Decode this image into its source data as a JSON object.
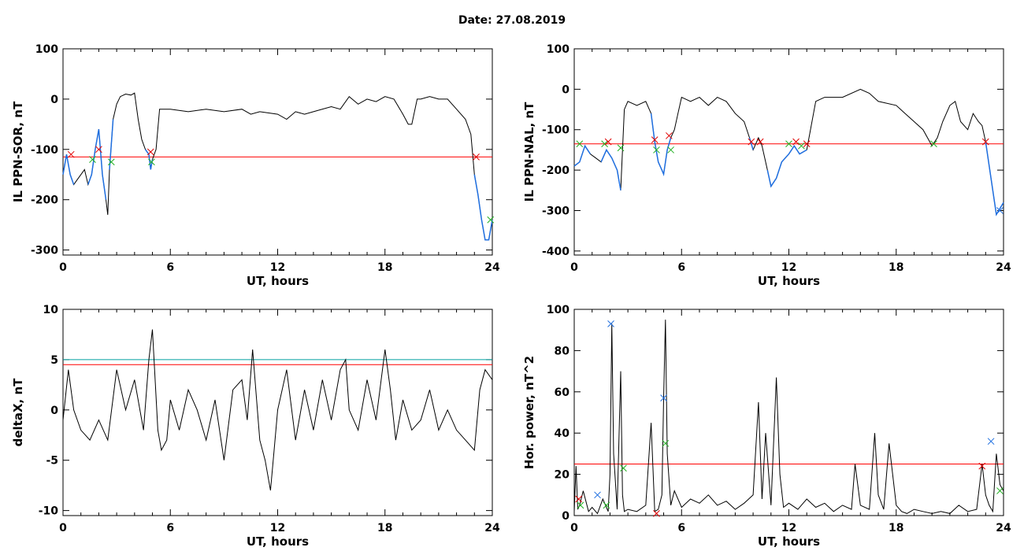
{
  "page": {
    "title": "Date:  27.08.2019"
  },
  "colors": {
    "trace": "#000000",
    "highlight": "#1f6fe0",
    "threshold": "#ff0000",
    "threshold2": "#00a0a0",
    "marker_red": "#e00000",
    "marker_green": "#20b020",
    "marker_blue": "#1f6fe0"
  },
  "chart_data": [
    {
      "type": "line",
      "id": "sor",
      "xlabel": "UT, hours",
      "ylabel": "IL PPN-SOR, nT",
      "xlim": [
        0,
        24
      ],
      "ylim": [
        -310,
        100
      ],
      "xticks": [
        "0",
        "6",
        "12",
        "18",
        "24"
      ],
      "yticks": [
        "-300",
        "-200",
        "-100",
        "0",
        "100"
      ],
      "threshold": -115,
      "series": [
        {
          "x": [
            0,
            0.2,
            0.4,
            0.6,
            0.8,
            1.0,
            1.2,
            1.4,
            1.6,
            1.8,
            2.0,
            2.2,
            2.4,
            2.5,
            2.6,
            2.8,
            3.0,
            3.2,
            3.5,
            3.8,
            4.0,
            4.2,
            4.4,
            4.6,
            4.8,
            4.9,
            5.0,
            5.2,
            5.4,
            6,
            7,
            8,
            9,
            10,
            10.5,
            11,
            12,
            12.5,
            13,
            13.5,
            14,
            15,
            15.5,
            16,
            16.5,
            17,
            17.5,
            18,
            18.5,
            19,
            19.3,
            19.5,
            19.8,
            20,
            20.5,
            21,
            21.5,
            22,
            22.5,
            22.8,
            23.0,
            23.2,
            23.4,
            23.6,
            23.8,
            24
          ],
          "y": [
            -150,
            -110,
            -150,
            -170,
            -160,
            -150,
            -140,
            -170,
            -150,
            -100,
            -60,
            -150,
            -200,
            -230,
            -140,
            -40,
            -10,
            5,
            10,
            8,
            12,
            -40,
            -80,
            -100,
            -110,
            -140,
            -120,
            -100,
            -20,
            -20,
            -25,
            -20,
            -25,
            -20,
            -30,
            -25,
            -30,
            -40,
            -25,
            -30,
            -25,
            -15,
            -20,
            5,
            -10,
            0,
            -5,
            5,
            0,
            -30,
            -50,
            -50,
            0,
            0,
            5,
            0,
            0,
            -20,
            -40,
            -70,
            -150,
            -190,
            -240,
            -280,
            -280,
            -240
          ],
          "highlight": [
            [
              0,
              0.6
            ],
            [
              1.4,
              2.4
            ],
            [
              2.6,
              2.8
            ],
            [
              4.6,
              5.0
            ],
            [
              23.0,
              24
            ]
          ]
        }
      ],
      "markers": [
        {
          "x": 0.45,
          "y": -110,
          "color": "marker_red"
        },
        {
          "x": 1.65,
          "y": -120,
          "color": "marker_green"
        },
        {
          "x": 2.0,
          "y": -100,
          "color": "marker_red"
        },
        {
          "x": 2.7,
          "y": -125,
          "color": "marker_green"
        },
        {
          "x": 4.9,
          "y": -105,
          "color": "marker_red"
        },
        {
          "x": 4.95,
          "y": -125,
          "color": "marker_green"
        },
        {
          "x": 23.1,
          "y": -115,
          "color": "marker_red"
        },
        {
          "x": 23.9,
          "y": -240,
          "color": "marker_green"
        }
      ]
    },
    {
      "type": "line",
      "id": "nal",
      "xlabel": "UT, hours",
      "ylabel": "IL PPN-NAL, nT",
      "xlim": [
        0,
        24
      ],
      "ylim": [
        -410,
        100
      ],
      "xticks": [
        "0",
        "6",
        "12",
        "18",
        "24"
      ],
      "yticks": [
        "-400",
        "-300",
        "-200",
        "-100",
        "0",
        "100"
      ],
      "threshold": -135,
      "series": [
        {
          "x": [
            0,
            0.3,
            0.6,
            0.9,
            1.2,
            1.5,
            1.8,
            2.1,
            2.4,
            2.6,
            2.8,
            3.0,
            3.5,
            4.0,
            4.3,
            4.5,
            4.7,
            4.9,
            5.0,
            5.2,
            5.4,
            5.6,
            5.8,
            6.0,
            6.5,
            7,
            7.5,
            8,
            8.5,
            9,
            9.5,
            9.8,
            10.0,
            10.3,
            10.5,
            10.8,
            11,
            11.3,
            11.6,
            12,
            12.3,
            12.6,
            13,
            13.5,
            14,
            15,
            16,
            16.5,
            17,
            18,
            18.5,
            19,
            19.5,
            20,
            20.3,
            20.6,
            21,
            21.3,
            21.6,
            22,
            22.3,
            22.6,
            22.8,
            23.0,
            23.3,
            23.6,
            24
          ],
          "y": [
            -190,
            -180,
            -140,
            -160,
            -170,
            -180,
            -150,
            -170,
            -200,
            -250,
            -50,
            -30,
            -40,
            -30,
            -60,
            -130,
            -180,
            -200,
            -210,
            -150,
            -120,
            -100,
            -60,
            -20,
            -30,
            -20,
            -40,
            -20,
            -30,
            -60,
            -80,
            -120,
            -150,
            -120,
            -140,
            -200,
            -240,
            -220,
            -180,
            -160,
            -140,
            -160,
            -150,
            -30,
            -20,
            -20,
            0,
            -10,
            -30,
            -40,
            -60,
            -80,
            -100,
            -140,
            -120,
            -80,
            -40,
            -30,
            -80,
            -100,
            -60,
            -80,
            -90,
            -130,
            -220,
            -310,
            -280
          ],
          "highlight": [
            [
              0,
              1.0
            ],
            [
              1.5,
              2.6
            ],
            [
              4.3,
              5.4
            ],
            [
              9.8,
              10.0
            ],
            [
              10.6,
              13.0
            ],
            [
              19.9,
              20.2
            ],
            [
              22.9,
              24
            ]
          ]
        }
      ],
      "markers": [
        {
          "x": 0.3,
          "y": -135,
          "color": "marker_green"
        },
        {
          "x": 1.7,
          "y": -135,
          "color": "marker_green"
        },
        {
          "x": 1.9,
          "y": -130,
          "color": "marker_red"
        },
        {
          "x": 2.6,
          "y": -145,
          "color": "marker_green"
        },
        {
          "x": 4.5,
          "y": -125,
          "color": "marker_red"
        },
        {
          "x": 4.6,
          "y": -150,
          "color": "marker_green"
        },
        {
          "x": 5.3,
          "y": -115,
          "color": "marker_red"
        },
        {
          "x": 5.4,
          "y": -150,
          "color": "marker_green"
        },
        {
          "x": 9.9,
          "y": -130,
          "color": "marker_red"
        },
        {
          "x": 10.4,
          "y": -130,
          "color": "marker_red"
        },
        {
          "x": 12.0,
          "y": -135,
          "color": "marker_green"
        },
        {
          "x": 12.4,
          "y": -130,
          "color": "marker_red"
        },
        {
          "x": 12.7,
          "y": -140,
          "color": "marker_green"
        },
        {
          "x": 13.0,
          "y": -135,
          "color": "marker_red"
        },
        {
          "x": 20.1,
          "y": -135,
          "color": "marker_green"
        },
        {
          "x": 23.0,
          "y": -130,
          "color": "marker_red"
        },
        {
          "x": 23.8,
          "y": -300,
          "color": "marker_blue"
        }
      ]
    },
    {
      "type": "line",
      "id": "deltax",
      "xlabel": "UT, hours",
      "ylabel": "deltaX, nT",
      "xlim": [
        0,
        24
      ],
      "ylim": [
        -10.5,
        10
      ],
      "xticks": [
        "0",
        "6",
        "12",
        "18",
        "24"
      ],
      "yticks": [
        "-10",
        "-5",
        "0",
        "5",
        "10"
      ],
      "threshold": 4.5,
      "threshold2": 5.0,
      "series": [
        {
          "x": [
            0,
            0.3,
            0.6,
            1.0,
            1.5,
            2.0,
            2.5,
            3.0,
            3.5,
            4.0,
            4.5,
            4.8,
            5.0,
            5.3,
            5.5,
            5.8,
            6.0,
            6.5,
            7.0,
            7.5,
            8.0,
            8.5,
            9.0,
            9.5,
            10.0,
            10.3,
            10.6,
            11.0,
            11.3,
            11.6,
            11.8,
            12.0,
            12.5,
            13.0,
            13.5,
            14.0,
            14.5,
            15.0,
            15.5,
            15.8,
            16.0,
            16.5,
            17.0,
            17.5,
            18.0,
            18.3,
            18.6,
            19.0,
            19.5,
            20.0,
            20.5,
            21.0,
            21.5,
            22.0,
            22.5,
            23.0,
            23.3,
            23.6,
            24
          ],
          "y": [
            -1,
            4,
            0,
            -2,
            -3,
            -1,
            -3,
            4,
            0,
            3,
            -2,
            5,
            8,
            -2,
            -4,
            -3,
            1,
            -2,
            2,
            0,
            -3,
            1,
            -5,
            2,
            3,
            -1,
            6,
            -3,
            -5,
            -8,
            -4,
            0,
            4,
            -3,
            2,
            -2,
            3,
            -1,
            4,
            5,
            0,
            -2,
            3,
            -1,
            6,
            2,
            -3,
            1,
            -2,
            -1,
            2,
            -2,
            0,
            -2,
            -3,
            -4,
            2,
            4,
            3
          ],
          "highlight": []
        }
      ],
      "markers": []
    },
    {
      "type": "line",
      "id": "power",
      "xlabel": "UT, hours",
      "ylabel": "Hor. power, nT^2",
      "xlim": [
        0,
        24
      ],
      "ylim": [
        0,
        100
      ],
      "xticks": [
        "0",
        "6",
        "12",
        "18",
        "24"
      ],
      "yticks": [
        "0",
        "20",
        "40",
        "60",
        "80",
        "100"
      ],
      "threshold": 25,
      "series": [
        {
          "x": [
            0,
            0.1,
            0.2,
            0.3,
            0.5,
            0.8,
            1.0,
            1.3,
            1.6,
            1.9,
            2.0,
            2.1,
            2.2,
            2.4,
            2.6,
            2.7,
            2.8,
            3.0,
            3.5,
            4.0,
            4.3,
            4.5,
            4.7,
            4.9,
            5.0,
            5.1,
            5.2,
            5.4,
            5.6,
            6.0,
            6.5,
            7.0,
            7.5,
            8.0,
            8.5,
            9.0,
            9.5,
            10.0,
            10.3,
            10.5,
            10.7,
            11.0,
            11.3,
            11.5,
            11.7,
            12.0,
            12.5,
            13.0,
            13.5,
            14.0,
            14.5,
            15.0,
            15.5,
            15.7,
            16.0,
            16.5,
            16.8,
            17.0,
            17.3,
            17.6,
            18.0,
            18.3,
            18.6,
            19.0,
            19.5,
            20.0,
            20.5,
            21.0,
            21.5,
            22.0,
            22.5,
            22.8,
            23.0,
            23.2,
            23.4,
            23.6,
            23.8,
            24
          ],
          "y": [
            2,
            24,
            3,
            5,
            12,
            2,
            4,
            1,
            8,
            2,
            20,
            93,
            30,
            3,
            70,
            10,
            2,
            3,
            2,
            5,
            45,
            2,
            3,
            10,
            57,
            95,
            30,
            5,
            12,
            4,
            8,
            6,
            10,
            5,
            7,
            3,
            6,
            10,
            55,
            8,
            40,
            5,
            67,
            20,
            4,
            6,
            3,
            8,
            4,
            6,
            2,
            5,
            3,
            25,
            5,
            3,
            40,
            10,
            3,
            35,
            5,
            2,
            1,
            3,
            2,
            1,
            2,
            1,
            5,
            2,
            3,
            25,
            10,
            5,
            2,
            30,
            15,
            12
          ],
          "highlight": []
        }
      ],
      "markers": [
        {
          "x": 0.25,
          "y": 8,
          "color": "marker_red"
        },
        {
          "x": 0.35,
          "y": 5,
          "color": "marker_green"
        },
        {
          "x": 1.3,
          "y": 10,
          "color": "marker_blue"
        },
        {
          "x": 1.8,
          "y": 5,
          "color": "marker_green"
        },
        {
          "x": 2.05,
          "y": 93,
          "color": "marker_blue"
        },
        {
          "x": 2.75,
          "y": 23,
          "color": "marker_green"
        },
        {
          "x": 4.6,
          "y": 1,
          "color": "marker_red"
        },
        {
          "x": 5.0,
          "y": 57,
          "color": "marker_blue"
        },
        {
          "x": 5.1,
          "y": 35,
          "color": "marker_green"
        },
        {
          "x": 22.8,
          "y": 24,
          "color": "marker_red"
        },
        {
          "x": 23.3,
          "y": 36,
          "color": "marker_blue"
        },
        {
          "x": 23.8,
          "y": 12,
          "color": "marker_green"
        }
      ]
    }
  ]
}
